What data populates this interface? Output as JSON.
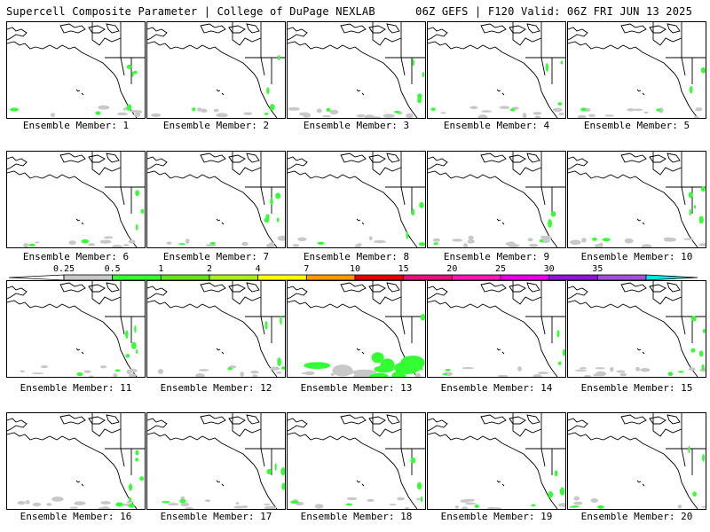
{
  "header": {
    "title": "Supercell Composite Parameter | College of DuPage NEXLAB",
    "run_info": "06Z GEFS | F120 Valid: 06Z FRI JUN 13 2025"
  },
  "colorbar": {
    "labels": [
      "0.25",
      "0.5",
      "1",
      "2",
      "4",
      "7",
      "10",
      "15",
      "20",
      "25",
      "30",
      "35"
    ],
    "colors": [
      "#c8c8c8",
      "#33ff33",
      "#66e01f",
      "#aaee22",
      "#ffff00",
      "#ff9900",
      "#e00000",
      "#e0147a",
      "#ff14b4",
      "#e600e6",
      "#8c14d2",
      "#a050d2",
      "#00e6e6"
    ]
  },
  "members": [
    {
      "label": "Ensemble Member: 1"
    },
    {
      "label": "Ensemble Member: 2"
    },
    {
      "label": "Ensemble Member: 3"
    },
    {
      "label": "Ensemble Member: 4"
    },
    {
      "label": "Ensemble Member: 5"
    },
    {
      "label": "Ensemble Member: 6"
    },
    {
      "label": "Ensemble Member: 7"
    },
    {
      "label": "Ensemble Member: 8"
    },
    {
      "label": "Ensemble Member: 9"
    },
    {
      "label": "Ensemble Member: 10"
    },
    {
      "label": "Ensemble Member: 11"
    },
    {
      "label": "Ensemble Member: 12"
    },
    {
      "label": "Ensemble Member: 13"
    },
    {
      "label": "Ensemble Member: 14"
    },
    {
      "label": "Ensemble Member: 15"
    },
    {
      "label": "Ensemble Member: 16"
    },
    {
      "label": "Ensemble Member: 17"
    },
    {
      "label": "Ensemble Member: 18"
    },
    {
      "label": "Ensemble Member: 19"
    },
    {
      "label": "Ensemble Member: 20"
    }
  ]
}
